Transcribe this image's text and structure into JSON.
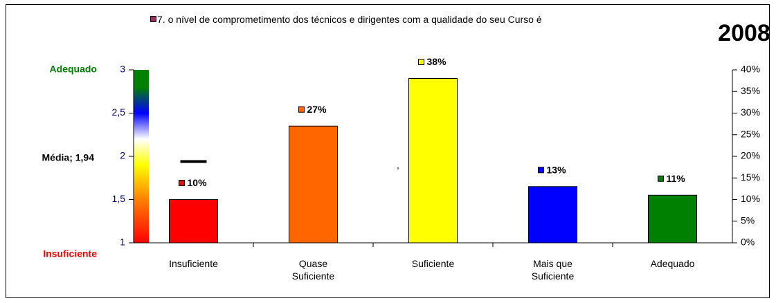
{
  "chart_data": {
    "type": "bar",
    "title": "2008",
    "categories": [
      "Insuficiente",
      "Quase Suficiente",
      "Suficiente",
      "Mais que Suficiente",
      "Adequado"
    ],
    "series": [
      {
        "name": "7. o nível de comprometimento dos técnicos e dirigentes com a qualidade do seu Curso é",
        "color": "#993366",
        "axis": "y2",
        "values": [
          10,
          27,
          38,
          13,
          11
        ],
        "value_labels": [
          "10%",
          "27%",
          "38%",
          "13%",
          "11%"
        ],
        "colors": [
          "#ff0000",
          "#ff6600",
          "#ffff00",
          "#0000ff",
          "#008000"
        ]
      }
    ],
    "ylim": [
      1,
      3
    ],
    "yticks": [
      1,
      {
        "value": 1.5,
        "label": "1,5"
      },
      2,
      {
        "value": 2.5,
        "label": "2,5"
      },
      3
    ],
    "y2lim": [
      0,
      40
    ],
    "y2ticks": [
      {
        "value": 0,
        "label": "0%"
      },
      {
        "value": 5,
        "label": "5%"
      },
      {
        "value": 10,
        "label": "10%"
      },
      {
        "value": 15,
        "label": "15%"
      },
      {
        "value": 20,
        "label": "20%"
      },
      {
        "value": 25,
        "label": "25%"
      },
      {
        "value": 30,
        "label": "30%"
      },
      {
        "value": 35,
        "label": "35%"
      },
      {
        "value": 40,
        "label": "40%"
      }
    ],
    "ylabel_top": "Adequado",
    "ylabel_bottom": "Insuficiente",
    "mean": {
      "label": "Média; 1,94",
      "value": 1.94
    },
    "annotation": ","
  }
}
